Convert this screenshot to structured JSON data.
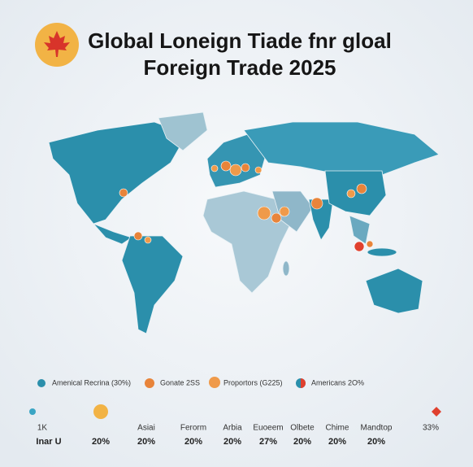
{
  "header": {
    "title_line1": "Global Loneign Tiade fnr gloal",
    "title_line2": "Foreign Trade 2025"
  },
  "legend": {
    "items": [
      "Amenical Recrina (30%)",
      "Gonate 2SS",
      "Proportors (G225)",
      "Americans 2O%"
    ]
  },
  "scale": {
    "top_labels": [
      "1K",
      "Asiai",
      "Ferorm",
      "Arbia",
      "Euoeem",
      "Olbete",
      "Chime",
      "Mandtop",
      "33%"
    ],
    "bottom_labels": [
      "Inar U",
      "20%",
      "20%",
      "20%",
      "20%",
      "27%",
      "20%",
      "20%",
      "20%"
    ]
  }
}
